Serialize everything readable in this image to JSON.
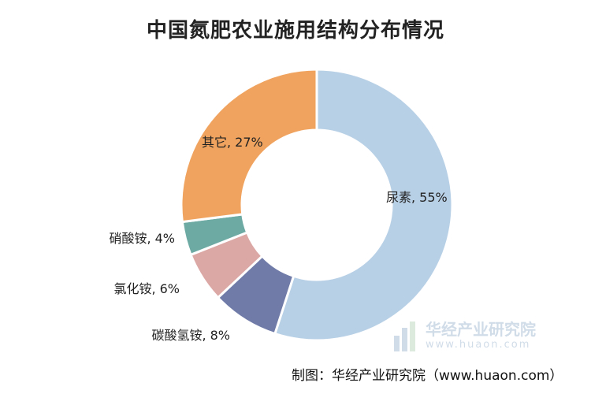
{
  "colors": {
    "background": "#ffffff",
    "title": "#222222",
    "label": "#222222",
    "slice_border": "#ffffff"
  },
  "chart_data": {
    "type": "pie",
    "style": "donut",
    "title": "中国氮肥农业施用结构分布情况",
    "slices": [
      {
        "label": "尿素, 55%",
        "category": "尿素",
        "value": 55,
        "color": "#b8d0e6"
      },
      {
        "label": "碳酸氢铵, 8%",
        "category": "碳酸氢铵",
        "value": 8,
        "color": "#707ba8"
      },
      {
        "label": "氯化铵, 6%",
        "category": "氯化铵",
        "value": 6,
        "color": "#dca8a6"
      },
      {
        "label": "硝酸铵, 4%",
        "category": "硝酸铵",
        "value": 4,
        "color": "#6eaaa4"
      },
      {
        "label": "其它, 27%",
        "category": "其它",
        "value": 27,
        "color": "#f0a35e"
      }
    ],
    "start_angle_deg": 0,
    "direction": "clockwise",
    "legend": "none"
  },
  "watermark": {
    "text": "华经产业研究院",
    "url": "www.huaon.com",
    "icon": "bar-chart-logo-icon"
  },
  "footer": {
    "text": "制图：华经产业研究院（www.huaon.com）"
  }
}
